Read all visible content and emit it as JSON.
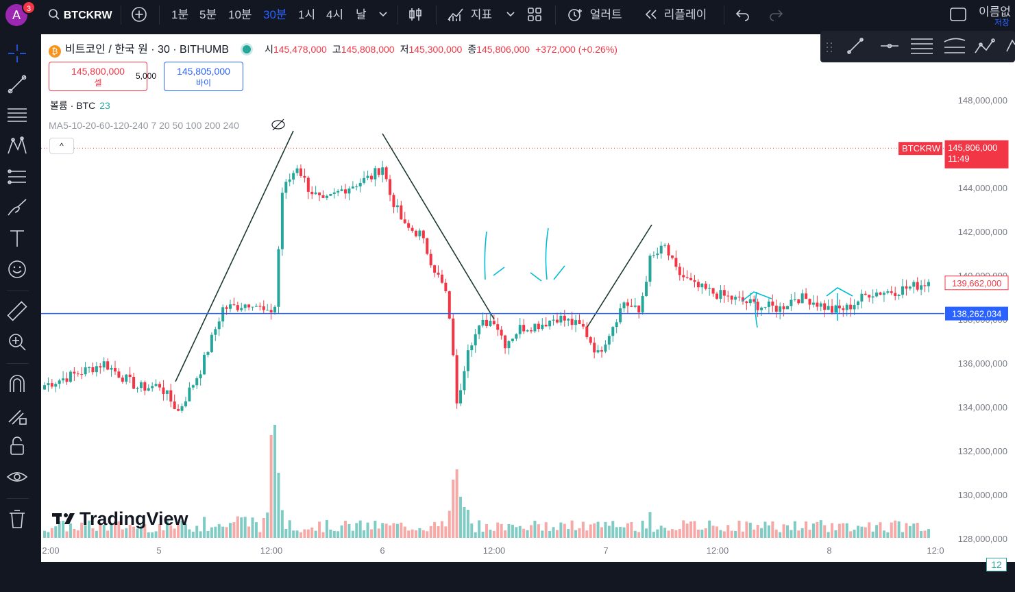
{
  "header": {
    "avatar_letter": "A",
    "notification_count": "3",
    "symbol": "BTCKRW",
    "intervals": [
      "1분",
      "5분",
      "10분",
      "30분",
      "1시",
      "4시",
      "날"
    ],
    "active_interval": "30분",
    "indicators_label": "지표",
    "alert_label": "얼러트",
    "replay_label": "리플레이",
    "save_line1": "이름없",
    "save_line2": "저장"
  },
  "legend": {
    "title": "비트코인 / 한국 원 · 30 · BITHUMB",
    "open_label": "시",
    "open": "145,478,000",
    "high_label": "고",
    "high": "145,808,000",
    "low_label": "저",
    "low": "145,300,000",
    "close_label": "종",
    "close": "145,806,000",
    "change": "+372,000 (+0.26%)",
    "sell_price": "145,800,000",
    "sell_label": "셀",
    "spread": "5,000",
    "buy_price": "145,805,000",
    "buy_label": "바이",
    "volume_label": "볼륨 · BTC",
    "volume_value": "23",
    "ma_label": "MA5-10-20-60-120-240 7 20 50 100 200 240",
    "collapse_glyph": "^"
  },
  "branding": {
    "logo_text": "TradingView"
  },
  "price_axis": {
    "ticks": [
      "148,000,000",
      "146,000,000",
      "144,000,000",
      "142,000,000",
      "140,000,000",
      "138,000,000",
      "136,000,000",
      "134,000,000",
      "132,000,000",
      "130,000,000",
      "128,000,000"
    ],
    "current_symbol": "BTCKRW",
    "current_price": "145,806,000",
    "countdown": "11:49",
    "ma_price": "139,662,000",
    "hline_price": "138,262,034",
    "volume_scale_label": "12"
  },
  "time_axis": {
    "ticks": [
      "2:00",
      "5",
      "12:00",
      "6",
      "12:00",
      "7",
      "12:00",
      "8",
      "12:0"
    ]
  },
  "colors": {
    "up": "#26a69a",
    "down": "#f23645",
    "hline": "#2962ff",
    "annotation": "#00bcd4",
    "volume_up": "#80cbc4",
    "volume_down": "#f7a9a7"
  },
  "chart_data": {
    "type": "candlestick",
    "interval": "30",
    "ylim": [
      127000000,
      149000000
    ],
    "horizontal_line": 138262034,
    "current_price": 145806000,
    "anchors": [
      [
        0,
        135000000
      ],
      [
        10,
        135600000
      ],
      [
        16,
        136000000
      ],
      [
        20,
        135500000
      ],
      [
        25,
        134900000
      ],
      [
        28,
        134900000
      ],
      [
        31,
        135000000
      ],
      [
        36,
        133800000
      ],
      [
        42,
        135700000
      ],
      [
        48,
        138500000
      ],
      [
        52,
        138600000
      ],
      [
        56,
        138800000
      ],
      [
        60,
        138200000
      ],
      [
        62,
        138600000
      ],
      [
        64,
        143800000
      ],
      [
        68,
        145000000
      ],
      [
        71,
        144000000
      ],
      [
        75,
        143300000
      ],
      [
        80,
        143900000
      ],
      [
        84,
        144200000
      ],
      [
        88,
        144500000
      ],
      [
        91,
        145000000
      ],
      [
        93,
        143700000
      ],
      [
        97,
        142200000
      ],
      [
        101,
        141900000
      ],
      [
        105,
        140300000
      ],
      [
        108,
        139200000
      ],
      [
        110,
        136500000
      ],
      [
        111,
        134000000
      ],
      [
        114,
        136800000
      ],
      [
        118,
        137800000
      ],
      [
        121,
        138000000
      ],
      [
        124,
        136900000
      ],
      [
        128,
        137600000
      ],
      [
        134,
        137800000
      ],
      [
        138,
        138100000
      ],
      [
        141,
        137900000
      ],
      [
        145,
        137600000
      ],
      [
        149,
        136400000
      ],
      [
        152,
        137400000
      ],
      [
        156,
        138800000
      ],
      [
        160,
        138300000
      ],
      [
        163,
        140700000
      ],
      [
        167,
        141300000
      ],
      [
        170,
        140200000
      ],
      [
        175,
        139500000
      ],
      [
        180,
        139200000
      ],
      [
        186,
        138900000
      ],
      [
        193,
        138600000
      ],
      [
        198,
        138500000
      ],
      [
        202,
        139000000
      ],
      [
        206,
        138900000
      ],
      [
        212,
        138400000
      ],
      [
        216,
        138500000
      ],
      [
        222,
        139200000
      ],
      [
        229,
        139300000
      ],
      [
        234,
        139500000
      ],
      [
        238,
        139700000
      ]
    ]
  }
}
